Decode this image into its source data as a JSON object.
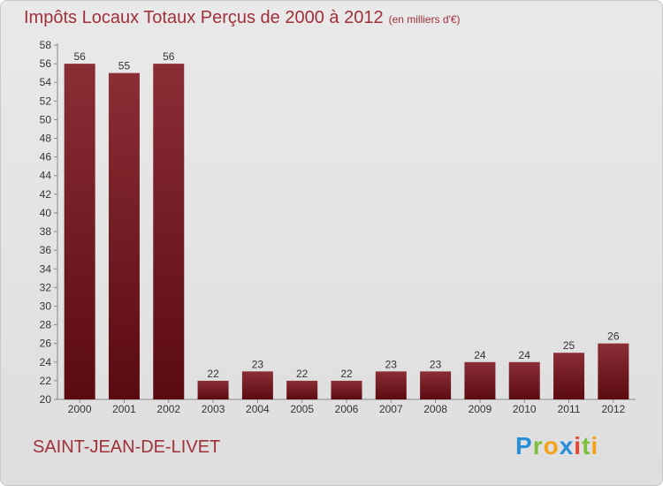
{
  "header": {
    "title": "Impôts Locaux Totaux Perçus de 2000 à 2012",
    "unit": "(en milliers d'€)"
  },
  "footer": {
    "commune": "SAINT-JEAN-DE-LIVET",
    "logo": "Proxiti"
  },
  "colors": {
    "bar_top": "#8b2e36",
    "bar_bottom": "#5a0a10",
    "title": "#a0303a"
  },
  "chart_data": {
    "type": "bar",
    "title": "Impôts Locaux Totaux Perçus de 2000 à 2012",
    "subtitle": "(en milliers d'€)",
    "xlabel": "",
    "ylabel": "",
    "categories": [
      "2000",
      "2001",
      "2002",
      "2003",
      "2004",
      "2005",
      "2006",
      "2007",
      "2008",
      "2009",
      "2010",
      "2011",
      "2012"
    ],
    "values": [
      56,
      55,
      56,
      22,
      23,
      22,
      22,
      23,
      23,
      24,
      24,
      25,
      26
    ],
    "ylim": [
      20,
      58
    ],
    "yticks": [
      20,
      22,
      24,
      26,
      28,
      30,
      32,
      34,
      36,
      38,
      40,
      42,
      44,
      46,
      48,
      50,
      52,
      54,
      56,
      58
    ],
    "grid": false,
    "legend": "none"
  }
}
